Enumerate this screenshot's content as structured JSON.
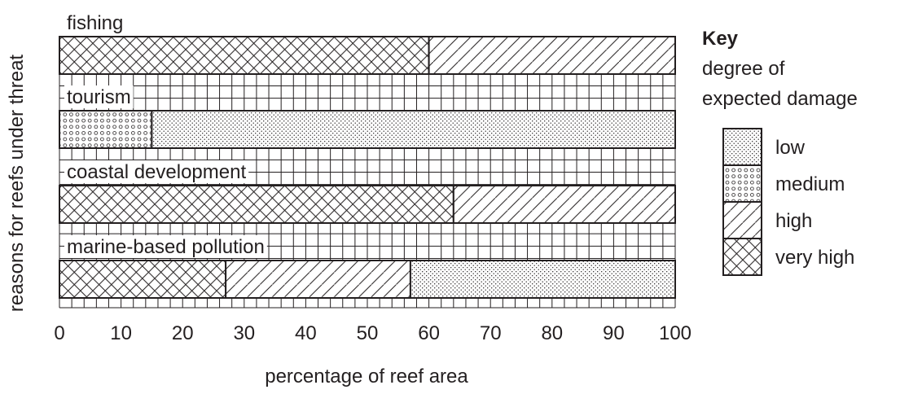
{
  "chart_data": {
    "type": "bar",
    "orientation": "horizontal",
    "stacked": true,
    "xlabel": "percentage of reef area",
    "ylabel": "reasons for reefs under threat",
    "xlim": [
      0,
      100
    ],
    "xticks": [
      "0",
      "10",
      "20",
      "30",
      "40",
      "50",
      "60",
      "70",
      "80",
      "90",
      "100"
    ],
    "grid": true,
    "legend_position": "right",
    "key": {
      "title": "Key",
      "subtitle": [
        "degree of",
        "expected damage"
      ]
    },
    "categories": [
      "fishing",
      "tourism",
      "coastal development",
      "marine-based pollution"
    ],
    "series": [
      {
        "name": "low",
        "pattern": "dots-fine",
        "values": [
          0,
          85,
          0,
          43
        ]
      },
      {
        "name": "medium",
        "pattern": "circles",
        "values": [
          0,
          15,
          0,
          0
        ]
      },
      {
        "name": "high",
        "pattern": "diagonal",
        "values": [
          40,
          0,
          36,
          30
        ]
      },
      {
        "name": "very high",
        "pattern": "crosshatch",
        "values": [
          60,
          0,
          64,
          27
        ]
      }
    ],
    "stack_order_left_to_right": [
      [
        "very high",
        "high"
      ],
      [
        "medium",
        "low"
      ],
      [
        "very high",
        "high"
      ],
      [
        "very high",
        "high",
        "low"
      ]
    ]
  }
}
